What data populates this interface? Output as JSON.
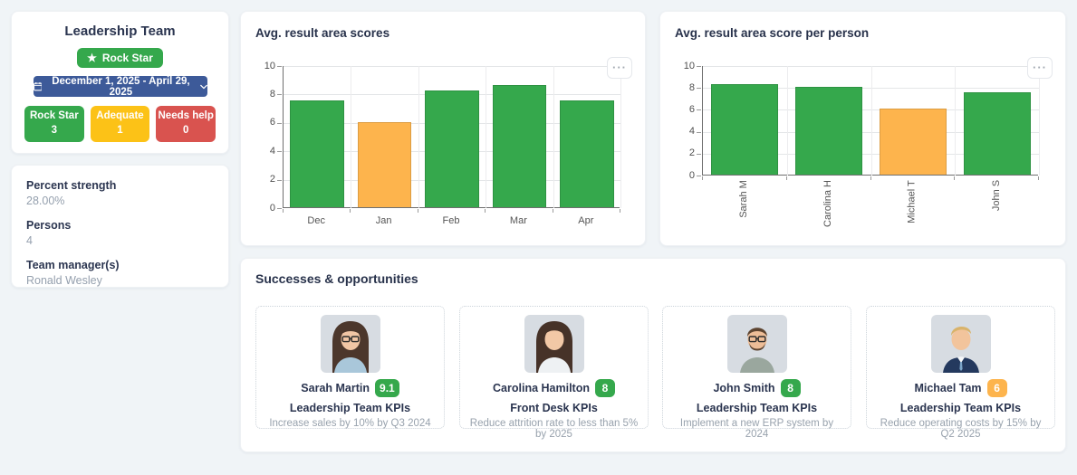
{
  "icons": {
    "star": "★",
    "ellipsis": "···"
  },
  "colors": {
    "green": "#35a84c",
    "orange": "#fdb44d",
    "yellow": "#fcc217",
    "red": "#d9534f",
    "blue": "#3d5a99"
  },
  "team_panel": {
    "title": "Leadership Team",
    "status_badge": {
      "label": "Rock Star",
      "color": "#35a84c"
    },
    "date_range": {
      "label": "December 1, 2025 - April 29, 2025"
    },
    "counters": [
      {
        "label": "Rock Star",
        "value": "3",
        "color": "#35a84c"
      },
      {
        "label": "Adequate",
        "value": "1",
        "color": "#fcc217"
      },
      {
        "label": "Needs help",
        "value": "0",
        "color": "#d9534f"
      }
    ]
  },
  "stats_panel": {
    "items": [
      {
        "label": "Percent strength",
        "value": "28.00%"
      },
      {
        "label": "Persons",
        "value": "4"
      },
      {
        "label": "Team manager(s)",
        "value": "Ronald Wesley"
      }
    ]
  },
  "chart_data": [
    {
      "type": "bar",
      "title": "Avg. result area scores",
      "categories": [
        "Dec",
        "Jan",
        "Feb",
        "Mar",
        "Apr"
      ],
      "values": [
        7.5,
        6,
        8.2,
        8.6,
        7.5
      ],
      "bar_colors": [
        "#35a84c",
        "#fdb44d",
        "#35a84c",
        "#35a84c",
        "#35a84c"
      ],
      "xlabel": "",
      "ylabel": "",
      "ylim": [
        0,
        10
      ],
      "yticks": [
        0,
        2,
        4,
        6,
        8,
        10
      ],
      "grid": true,
      "legend": "none"
    },
    {
      "type": "bar",
      "title": "Avg. result area score per person",
      "categories": [
        "Sarah M",
        "Carolina H",
        "Michael T",
        "John S"
      ],
      "values": [
        8.3,
        8,
        6,
        7.5
      ],
      "bar_colors": [
        "#35a84c",
        "#35a84c",
        "#fdb44d",
        "#35a84c"
      ],
      "xlabel": "",
      "ylabel": "",
      "ylim": [
        0,
        10
      ],
      "yticks": [
        0,
        2,
        4,
        6,
        8,
        10
      ],
      "grid": true,
      "legend": "none",
      "tick_rotation": -90
    }
  ],
  "successes": {
    "title": "Successes & opportunities",
    "cards": [
      {
        "name": "Sarah Martin",
        "score": "9.1",
        "score_color": "#35a84c",
        "kpi": "Leadership Team KPIs",
        "goal": "Increase sales by 10% by Q3 2024",
        "avatar": "woman-dark-hair-glasses"
      },
      {
        "name": "Carolina Hamilton",
        "score": "8",
        "score_color": "#35a84c",
        "kpi": "Front Desk KPIs",
        "goal": "Reduce attrition rate to less than 5% by 2025",
        "avatar": "woman-dark-hair"
      },
      {
        "name": "John Smith",
        "score": "8",
        "score_color": "#35a84c",
        "kpi": "Leadership Team KPIs",
        "goal": "Implement a new ERP system by 2024",
        "avatar": "man-glasses-beard"
      },
      {
        "name": "Michael Tam",
        "score": "6",
        "score_color": "#fdb44d",
        "kpi": "Leadership Team KPIs",
        "goal": "Reduce operating costs by 15% by Q2 2025",
        "avatar": "man-blond-suit"
      }
    ]
  }
}
